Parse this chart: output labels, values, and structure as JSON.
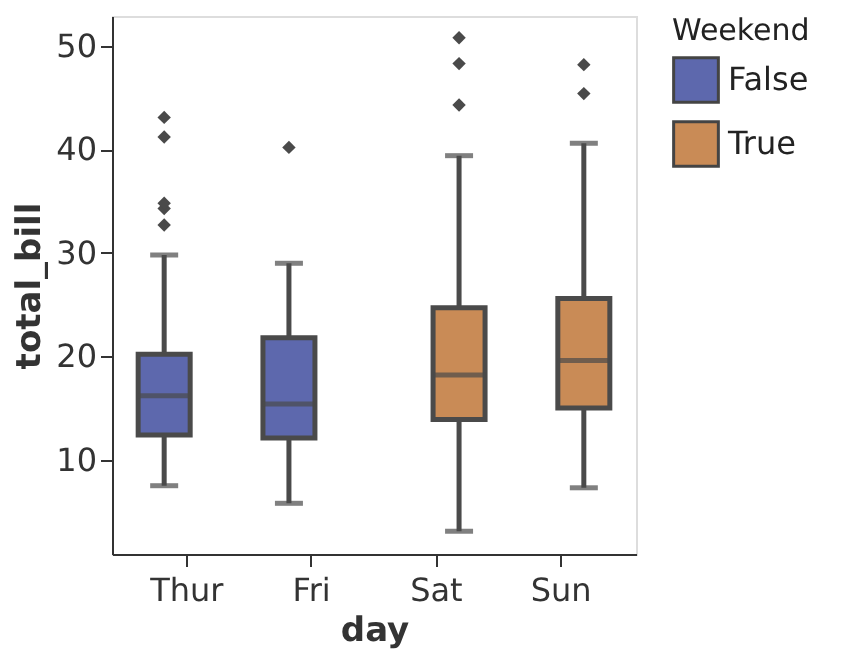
{
  "chart_data": {
    "type": "box",
    "xlabel": "day",
    "ylabel": "total_bill",
    "legend_title": "Weekend",
    "legend": "right",
    "marker": "diamond",
    "grid": false,
    "categories": [
      "Thur",
      "Fri",
      "Sat",
      "Sun"
    ],
    "ylim": [
      0.9,
      52.9
    ],
    "yticks": [
      10,
      20,
      30,
      40,
      50
    ],
    "series": [
      {
        "name": "False",
        "color": "#5d68ad",
        "boxes": [
          {
            "low": 7.5,
            "q1": 12.4,
            "median": 16.2,
            "q3": 20.2,
            "high": 29.8,
            "outliers": [
              32.7,
              34.3,
              34.8,
              41.2,
              43.1
            ]
          },
          {
            "low": 5.8,
            "q1": 12.1,
            "median": 15.4,
            "q3": 21.8,
            "high": 29.0,
            "outliers": [
              40.2
            ]
          },
          null,
          null
        ]
      },
      {
        "name": "True",
        "color": "#c98b56",
        "boxes": [
          null,
          null,
          {
            "low": 3.1,
            "q1": 13.9,
            "median": 18.2,
            "q3": 24.7,
            "high": 39.4,
            "outliers": [
              44.3,
              48.3,
              50.8
            ]
          },
          {
            "low": 7.3,
            "q1": 15.0,
            "median": 19.6,
            "q3": 25.6,
            "high": 40.6,
            "outliers": [
              45.4,
              48.2
            ]
          }
        ]
      }
    ]
  }
}
